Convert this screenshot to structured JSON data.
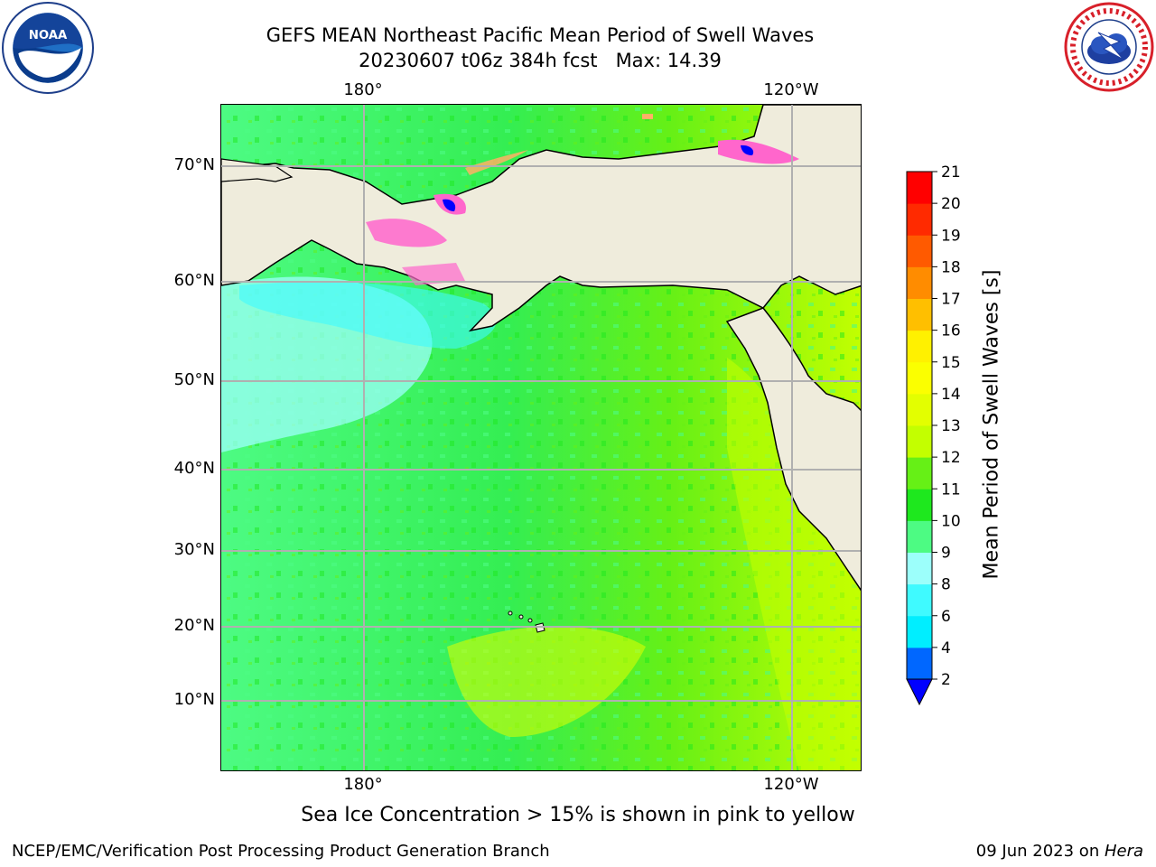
{
  "title": {
    "line1": "GEFS MEAN Northeast Pacific Mean Period of Swell Waves",
    "line2": "20230607 t06z 384h fcst   Max: 14.39"
  },
  "map": {
    "lon_labels_top": [
      "180°",
      "120°W"
    ],
    "lon_labels_bottom": [
      "180°",
      "120°W"
    ],
    "lat_labels": [
      "70°N",
      "60°N",
      "50°N",
      "40°N",
      "30°N",
      "20°N",
      "10°N"
    ],
    "land_color": "#efecdc",
    "grid_color": "#b0b0b0"
  },
  "colorbar": {
    "label": "Mean Period of Swell Waves [s]",
    "ticks": [
      "2",
      "4",
      "6",
      "8",
      "9",
      "10",
      "11",
      "12",
      "13",
      "14",
      "15",
      "16",
      "17",
      "18",
      "19",
      "20",
      "21"
    ],
    "colors": [
      "#0067ff",
      "#00eeff",
      "#3ffaff",
      "#9cfffb",
      "#4dfb83",
      "#1ee81e",
      "#66f016",
      "#c3ff00",
      "#e3ff00",
      "#fbff00",
      "#fff100",
      "#ffbf00",
      "#ff8c00",
      "#ff5a00",
      "#ff2a00",
      "#ff0000"
    ],
    "extend_color": "#0000ff"
  },
  "subtitle": "Sea Ice Concentration > 15% is shown in pink to yellow",
  "footer": {
    "left": "NCEP/EMC/Verification Post Processing Product Generation Branch",
    "right_date": "09 Jun 2023 on ",
    "right_host": "Hera"
  },
  "logos": {
    "left": "noaa-logo",
    "right": "nws-logo"
  }
}
